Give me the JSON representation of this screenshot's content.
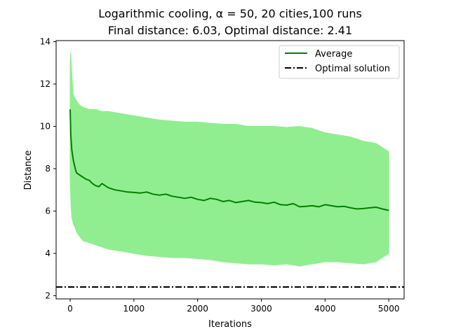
{
  "chart_data": {
    "type": "line",
    "title_line1": "Logarithmic cooling, α = 50, 20 cities,100 runs",
    "title_line2": "Final distance: 6.03, Optimal distance: 2.41",
    "xlabel": "Iterations",
    "ylabel": "Distance",
    "xlim": [
      -220,
      5240
    ],
    "ylim": [
      1.85,
      14.05
    ],
    "x_ticks": [
      0,
      1000,
      2000,
      3000,
      4000,
      5000
    ],
    "y_ticks": [
      2,
      4,
      6,
      8,
      10,
      12,
      14
    ],
    "legend_position": "top-right",
    "grid": false,
    "series": [
      {
        "name": "Average",
        "color": "#008000",
        "x": [
          0,
          10,
          25,
          50,
          80,
          100,
          150,
          200,
          250,
          300,
          350,
          400,
          450,
          500,
          550,
          600,
          700,
          800,
          900,
          1000,
          1100,
          1200,
          1300,
          1400,
          1500,
          1600,
          1700,
          1800,
          1900,
          2000,
          2100,
          2200,
          2300,
          2400,
          2500,
          2600,
          2700,
          2800,
          2900,
          3000,
          3100,
          3200,
          3300,
          3400,
          3500,
          3600,
          3700,
          3800,
          3900,
          4000,
          4100,
          4200,
          4300,
          4400,
          4500,
          4600,
          4700,
          4800,
          4900,
          5000
        ],
        "y": [
          10.8,
          9.6,
          8.9,
          8.4,
          8.0,
          7.8,
          7.7,
          7.6,
          7.5,
          7.45,
          7.3,
          7.2,
          7.15,
          7.3,
          7.2,
          7.1,
          7.0,
          6.95,
          6.9,
          6.88,
          6.85,
          6.9,
          6.8,
          6.75,
          6.8,
          6.7,
          6.65,
          6.6,
          6.65,
          6.55,
          6.5,
          6.6,
          6.55,
          6.45,
          6.5,
          6.4,
          6.45,
          6.5,
          6.42,
          6.4,
          6.35,
          6.42,
          6.3,
          6.28,
          6.35,
          6.2,
          6.22,
          6.25,
          6.2,
          6.3,
          6.25,
          6.2,
          6.22,
          6.15,
          6.1,
          6.12,
          6.15,
          6.18,
          6.1,
          6.03
        ]
      },
      {
        "name": "Optimal solution",
        "color": "#000000",
        "value": 2.41
      }
    ],
    "runs_band": {
      "color": "#90ee90",
      "x": [
        0,
        10,
        25,
        50,
        80,
        100,
        150,
        200,
        300,
        400,
        500,
        600,
        800,
        1000,
        1200,
        1400,
        1600,
        1800,
        2000,
        2200,
        2400,
        2600,
        2800,
        3000,
        3200,
        3400,
        3600,
        3800,
        4000,
        4200,
        4400,
        4600,
        4800,
        5000
      ],
      "low": [
        7.6,
        6.5,
        5.7,
        5.4,
        5.2,
        5.0,
        4.8,
        4.6,
        4.5,
        4.4,
        4.3,
        4.2,
        4.1,
        4.0,
        3.9,
        3.85,
        3.8,
        3.8,
        3.75,
        3.7,
        3.6,
        3.55,
        3.5,
        3.5,
        3.45,
        3.5,
        3.4,
        3.5,
        3.6,
        3.6,
        3.55,
        3.5,
        3.6,
        4.0
      ],
      "high": [
        13.0,
        13.5,
        12.5,
        11.5,
        11.3,
        11.2,
        11.0,
        10.9,
        10.8,
        10.8,
        10.7,
        10.7,
        10.6,
        10.5,
        10.4,
        10.3,
        10.25,
        10.2,
        10.2,
        10.15,
        10.1,
        10.1,
        10.0,
        10.0,
        10.0,
        9.95,
        10.0,
        9.9,
        9.7,
        9.6,
        9.5,
        9.3,
        9.2,
        8.8
      ]
    }
  }
}
